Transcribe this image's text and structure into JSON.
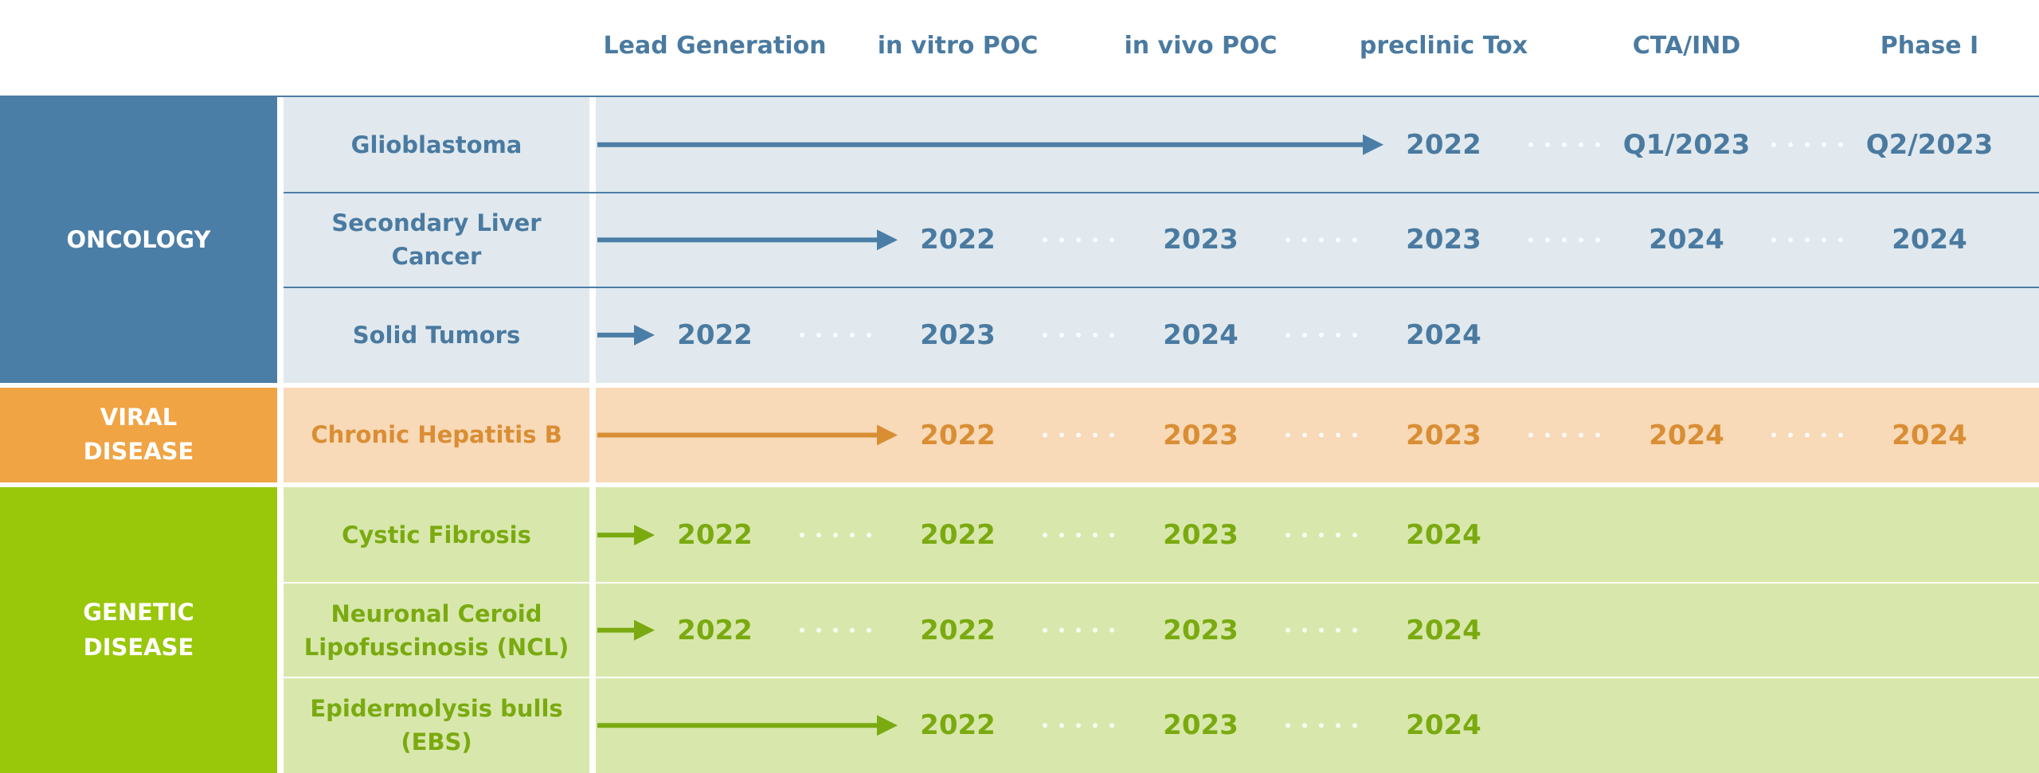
{
  "header": {
    "stages": [
      "Lead Generation",
      "in vitro POC",
      "in vivo POC",
      "preclinic Tox",
      "CTA/IND",
      "Phase I"
    ]
  },
  "groups": [
    {
      "label": "ONCOLOGY",
      "programs": [
        {
          "name": "Glioblastoma",
          "milestones": [
            null,
            null,
            null,
            "2022",
            "Q1/2023",
            "Q2/2023"
          ]
        },
        {
          "name": "Secondary Liver Cancer",
          "milestones": [
            null,
            "2022",
            "2023",
            "2023",
            "2024",
            "2024"
          ]
        },
        {
          "name": "Solid Tumors",
          "milestones": [
            "2022",
            "2023",
            "2024",
            "2024",
            null,
            null
          ]
        }
      ]
    },
    {
      "label": "VIRAL DISEASE",
      "programs": [
        {
          "name": "Chronic Hepatitis B",
          "milestones": [
            null,
            "2022",
            "2023",
            "2023",
            "2024",
            "2024"
          ]
        }
      ]
    },
    {
      "label": "GENETIC DISEASE",
      "programs": [
        {
          "name": "Cystic Fibrosis",
          "milestones": [
            "2022",
            "2022",
            "2023",
            "2024",
            null,
            null
          ]
        },
        {
          "name": "Neuronal Ceroid Lipofuscinosis (NCL)",
          "milestones": [
            "2022",
            "2022",
            "2023",
            "2024",
            null,
            null
          ]
        },
        {
          "name": "Epidermolysis bulls (EBS)",
          "milestones": [
            null,
            "2022",
            "2023",
            "2024",
            null,
            null
          ]
        }
      ]
    }
  ]
}
